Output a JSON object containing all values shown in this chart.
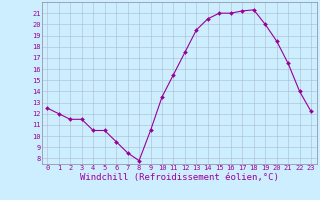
{
  "x": [
    0,
    1,
    2,
    3,
    4,
    5,
    6,
    7,
    8,
    9,
    10,
    11,
    12,
    13,
    14,
    15,
    16,
    17,
    18,
    19,
    20,
    21,
    22,
    23
  ],
  "y": [
    12.5,
    12.0,
    11.5,
    11.5,
    10.5,
    10.5,
    9.5,
    8.5,
    7.8,
    10.5,
    13.5,
    15.5,
    17.5,
    19.5,
    20.5,
    21.0,
    21.0,
    21.2,
    21.3,
    20.0,
    18.5,
    16.5,
    14.0,
    12.2
  ],
  "line_color": "#990099",
  "marker": "D",
  "markersize": 2.0,
  "linewidth": 0.8,
  "xlabel": "Windchill (Refroidissement éolien,°C)",
  "xlabel_fontsize": 6.5,
  "xlim": [
    -0.5,
    23.5
  ],
  "ylim": [
    7.5,
    22.0
  ],
  "yticks": [
    8,
    9,
    10,
    11,
    12,
    13,
    14,
    15,
    16,
    17,
    18,
    19,
    20,
    21
  ],
  "xticks": [
    0,
    1,
    2,
    3,
    4,
    5,
    6,
    7,
    8,
    9,
    10,
    11,
    12,
    13,
    14,
    15,
    16,
    17,
    18,
    19,
    20,
    21,
    22,
    23
  ],
  "bg_color": "#cceeff",
  "grid_color": "#aabbcc",
  "tick_fontsize": 5.0,
  "label_color": "#990099",
  "border_color": "#888899"
}
